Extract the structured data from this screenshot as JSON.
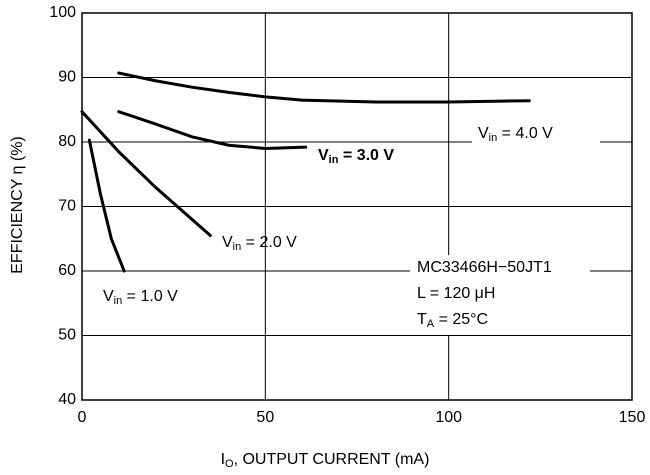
{
  "chart_data": {
    "type": "line",
    "xlabel": "IO, OUTPUT CURRENT (mA)",
    "ylabel": "EFFICIENCY η (%)",
    "xlim": [
      0,
      150
    ],
    "xticks": [
      0,
      50,
      100,
      150
    ],
    "ylim": [
      40,
      100
    ],
    "yticks": [
      40,
      50,
      60,
      70,
      80,
      90,
      100
    ],
    "grid": true,
    "series": [
      {
        "name": "Vin = 4.0 V",
        "color": "#000000",
        "x": [
          10,
          20,
          30,
          40,
          50,
          60,
          80,
          100,
          122
        ],
        "values": [
          90.7,
          89.5,
          88.5,
          87.7,
          87.0,
          86.5,
          86.2,
          86.2,
          86.4
        ]
      },
      {
        "name": "Vin = 3.0 V",
        "color": "#000000",
        "x": [
          10,
          20,
          30,
          40,
          50,
          61
        ],
        "values": [
          84.7,
          82.8,
          80.8,
          79.5,
          79.0,
          79.2
        ]
      },
      {
        "name": "Vin = 2.0 V",
        "color": "#000000",
        "x": [
          0,
          10,
          20,
          30,
          35
        ],
        "values": [
          84.7,
          78.5,
          73.0,
          68.0,
          65.5
        ]
      },
      {
        "name": "Vin = 1.0 V",
        "color": "#000000",
        "x": [
          2,
          5,
          8,
          11.5
        ],
        "values": [
          80.3,
          72.0,
          65.0,
          60.0
        ]
      }
    ],
    "annotations": [
      "MC33466H−50JT1",
      "L = 120 μH",
      "TA = 25°C"
    ]
  }
}
